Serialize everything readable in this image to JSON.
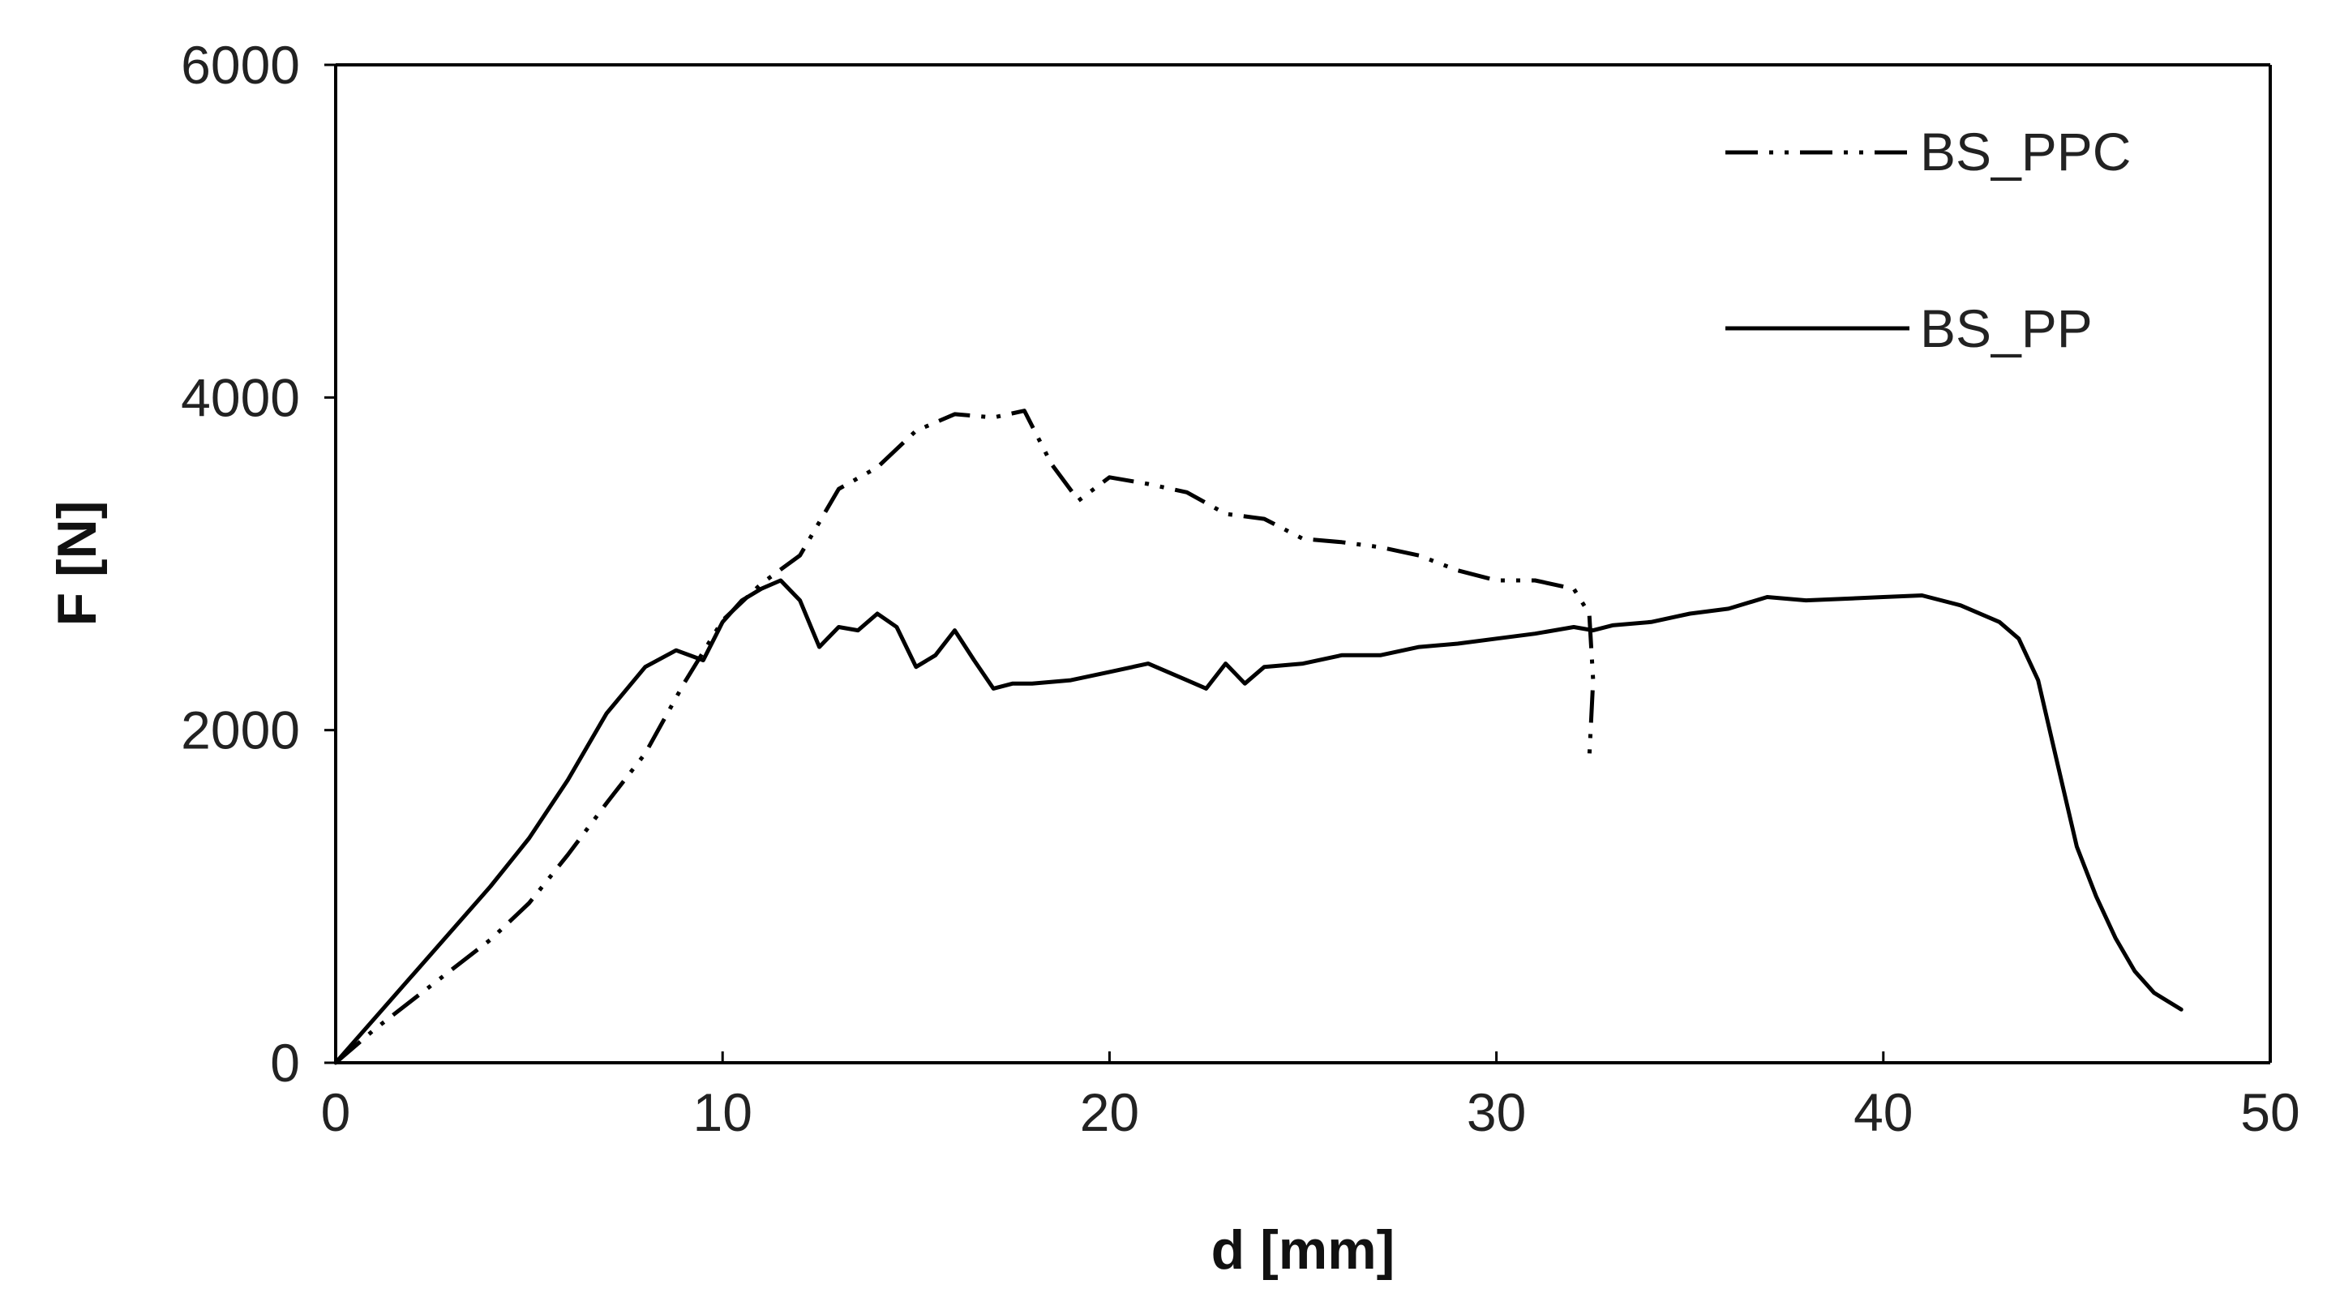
{
  "chart_data": {
    "type": "line",
    "title": "",
    "xlabel": "d [mm]",
    "ylabel": "F [N]",
    "xlim": [
      0,
      50
    ],
    "ylim": [
      0,
      6000
    ],
    "xticks": [
      "0",
      "10",
      "20",
      "30",
      "40",
      "50"
    ],
    "yticks": [
      "0",
      "2000",
      "4000",
      "6000"
    ],
    "grid": false,
    "legend_position": "top-right",
    "series": [
      {
        "name": "BS_PPC",
        "line_style": "dash-dot-dot",
        "color": "#000000",
        "x": [
          0,
          1,
          2,
          3,
          4,
          5,
          6,
          7,
          8,
          9,
          10,
          11,
          12,
          13,
          14,
          15,
          16,
          17,
          17.8,
          18.5,
          19.2,
          20,
          21,
          22,
          23,
          24,
          25,
          26,
          27,
          28,
          29,
          30,
          31,
          32,
          32.4,
          32.5,
          32.4
        ],
        "y": [
          0,
          200,
          380,
          560,
          740,
          960,
          1250,
          1560,
          1860,
          2280,
          2660,
          2880,
          3050,
          3450,
          3580,
          3800,
          3900,
          3880,
          3920,
          3600,
          3380,
          3520,
          3480,
          3430,
          3300,
          3270,
          3150,
          3130,
          3100,
          3050,
          2960,
          2900,
          2900,
          2850,
          2700,
          2300,
          1830
        ]
      },
      {
        "name": "BS_PP",
        "line_style": "solid",
        "color": "#000000",
        "x": [
          0,
          2,
          4,
          5,
          6,
          7,
          8,
          8.8,
          9.5,
          10,
          10.5,
          11,
          11.5,
          12,
          12.5,
          13,
          13.5,
          14,
          14.5,
          15,
          15.5,
          16,
          16.5,
          17,
          17.5,
          18,
          19,
          20,
          21,
          22,
          22.5,
          23,
          23.5,
          24,
          25,
          26,
          27,
          28,
          29,
          30,
          31,
          32,
          32.5,
          33,
          34,
          35,
          36,
          37,
          38,
          39,
          40,
          41,
          42,
          43,
          43.5,
          44,
          44.5,
          45,
          45.5,
          46,
          46.5,
          47,
          47.7
        ],
        "y": [
          0,
          530,
          1060,
          1350,
          1700,
          2100,
          2380,
          2480,
          2420,
          2650,
          2780,
          2850,
          2900,
          2780,
          2500,
          2620,
          2600,
          2700,
          2620,
          2380,
          2450,
          2600,
          2420,
          2250,
          2280,
          2280,
          2300,
          2350,
          2400,
          2300,
          2250,
          2400,
          2280,
          2380,
          2400,
          2450,
          2450,
          2500,
          2520,
          2550,
          2580,
          2620,
          2600,
          2630,
          2650,
          2700,
          2730,
          2800,
          2780,
          2790,
          2800,
          2810,
          2750,
          2650,
          2550,
          2300,
          1800,
          1300,
          1000,
          750,
          550,
          420,
          320
        ]
      }
    ]
  }
}
